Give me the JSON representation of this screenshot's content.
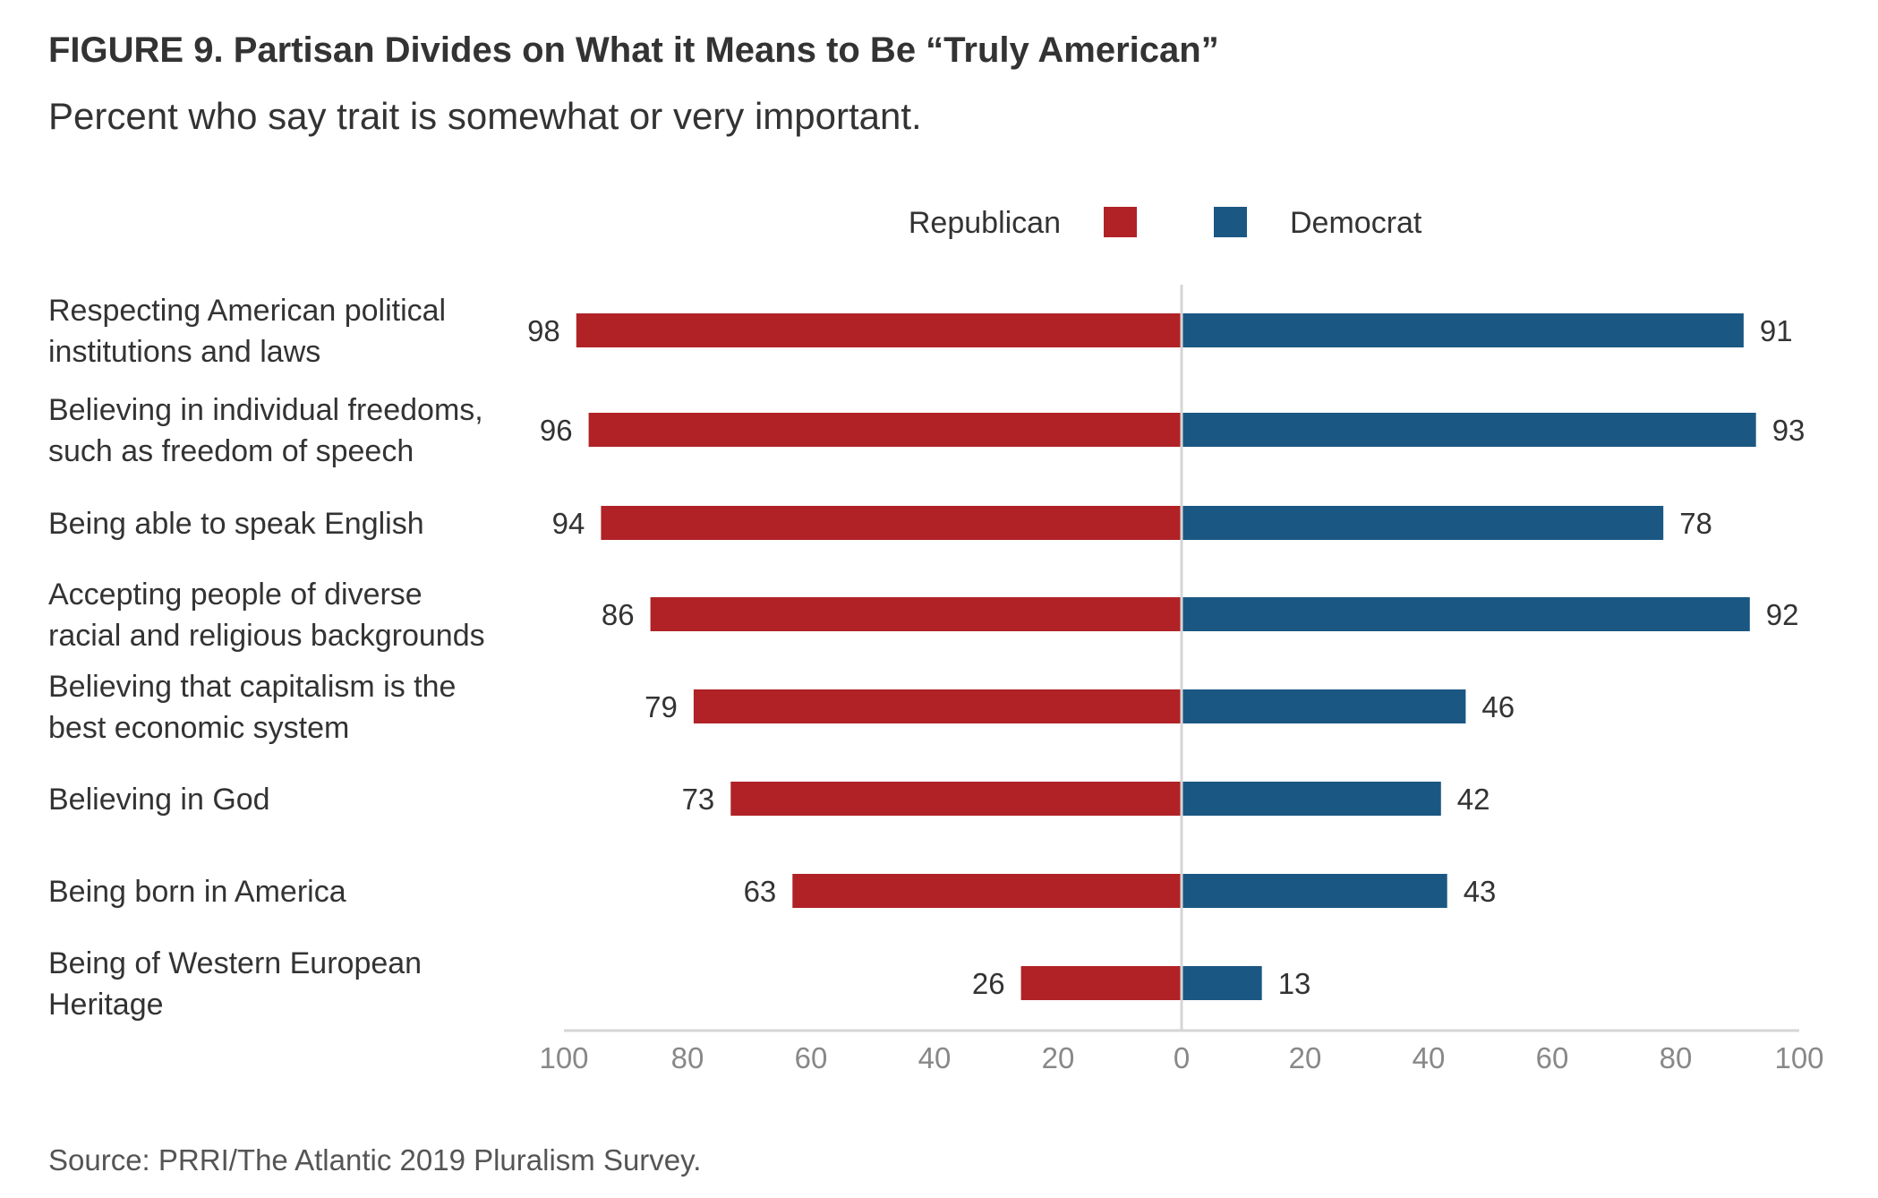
{
  "figure": {
    "title": "FIGURE 9.  Partisan Divides on What it Means to Be “Truly American”",
    "subtitle": "Percent who say trait is somewhat or very important.",
    "source": "Source: PRRI/The Atlantic 2019 Pluralism Survey."
  },
  "chart_data": {
    "type": "bar",
    "orientation": "horizontal-diverging",
    "title": "FIGURE 9.  Partisan Divides on What it Means to Be “Truly American”",
    "subtitle": "Percent who say trait is somewhat or very important.",
    "categories": [
      [
        "Respecting American political",
        "institutions and laws"
      ],
      [
        "Believing in individual freedoms,",
        "such as freedom of speech"
      ],
      [
        "Being able to speak English"
      ],
      [
        "Accepting people of diverse",
        "racial and religious backgrounds"
      ],
      [
        "Believing that capitalism is the",
        "best economic system"
      ],
      [
        "Believing in God"
      ],
      [
        "Being born in America"
      ],
      [
        "Being of Western European",
        "Heritage"
      ]
    ],
    "series": [
      {
        "name": "Republican",
        "color": "#b02226",
        "side": "left",
        "values": [
          98,
          96,
          94,
          86,
          79,
          73,
          63,
          26
        ]
      },
      {
        "name": "Democrat",
        "color": "#1b5783",
        "side": "right",
        "values": [
          91,
          93,
          78,
          92,
          46,
          42,
          43,
          13
        ]
      }
    ],
    "xlim": [
      -100,
      100
    ],
    "xticks": [
      "100",
      "80",
      "60",
      "40",
      "20",
      "0",
      "20",
      "40",
      "60",
      "80",
      "100"
    ],
    "legend": {
      "placement": "top-center"
    },
    "grid": false
  }
}
